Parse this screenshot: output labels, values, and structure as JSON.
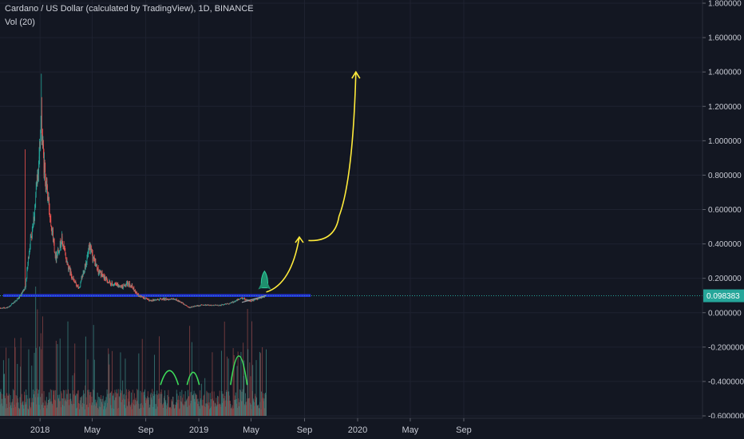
{
  "header": {
    "title": "Cardano / US Dollar (calculated by TradingView), 1D, BINANCE",
    "indicator": "Vol (20)"
  },
  "colors": {
    "background": "#131722",
    "grid": "#1e2230",
    "up": "#26a69a",
    "down": "#ef5350",
    "support": "#2431d8",
    "projection": "#ffeb3b",
    "volume_arcs": "#3ddc5a",
    "price_line": "#26a69a",
    "price_label_bg": "#26a69a"
  },
  "chart_data": {
    "type": "candlestick",
    "symbol": "Cardano / US Dollar",
    "interval": "1D",
    "exchange": "BINANCE",
    "ylim": [
      -0.6,
      1.8
    ],
    "y_ticks": [
      "1.800000",
      "1.600000",
      "1.400000",
      "1.200000",
      "1.000000",
      "0.800000",
      "0.600000",
      "0.400000",
      "0.200000",
      "0.000000",
      "-0.200000",
      "-0.400000",
      "-0.600000"
    ],
    "y_tick_values": [
      1.8,
      1.6,
      1.4,
      1.2,
      1.0,
      0.8,
      0.6,
      0.4,
      0.2,
      0.0,
      -0.2,
      -0.4,
      -0.6
    ],
    "x_range": [
      "2017-10-01",
      "2020-11-30"
    ],
    "x_ticks": [
      {
        "label": "2018",
        "date": "2018-01-01"
      },
      {
        "label": "May",
        "date": "2018-05-01"
      },
      {
        "label": "Sep",
        "date": "2018-09-01"
      },
      {
        "label": "2019",
        "date": "2019-01-01"
      },
      {
        "label": "May",
        "date": "2019-05-01"
      },
      {
        "label": "Sep",
        "date": "2019-09-01"
      },
      {
        "label": "2020",
        "date": "2020-01-01"
      },
      {
        "label": "May",
        "date": "2020-05-01"
      },
      {
        "label": "Sep",
        "date": "2020-09-01"
      }
    ],
    "price_path": [
      {
        "date": "2017-10-01",
        "close": 0.025
      },
      {
        "date": "2017-10-20",
        "close": 0.03
      },
      {
        "date": "2017-11-15",
        "close": 0.09
      },
      {
        "date": "2017-11-28",
        "close": 0.14
      },
      {
        "date": "2017-12-08",
        "close": 0.38
      },
      {
        "date": "2017-12-20",
        "close": 0.6
      },
      {
        "date": "2017-12-28",
        "close": 0.85
      },
      {
        "date": "2018-01-04",
        "close": 1.1
      },
      {
        "date": "2018-01-10",
        "close": 0.85
      },
      {
        "date": "2018-01-20",
        "close": 0.65
      },
      {
        "date": "2018-02-06",
        "close": 0.32
      },
      {
        "date": "2018-02-20",
        "close": 0.42
      },
      {
        "date": "2018-03-05",
        "close": 0.28
      },
      {
        "date": "2018-03-20",
        "close": 0.18
      },
      {
        "date": "2018-04-01",
        "close": 0.14
      },
      {
        "date": "2018-04-25",
        "close": 0.37
      },
      {
        "date": "2018-05-15",
        "close": 0.24
      },
      {
        "date": "2018-06-10",
        "close": 0.17
      },
      {
        "date": "2018-07-10",
        "close": 0.15
      },
      {
        "date": "2018-07-25",
        "close": 0.17
      },
      {
        "date": "2018-08-15",
        "close": 0.1
      },
      {
        "date": "2018-09-10",
        "close": 0.07
      },
      {
        "date": "2018-10-10",
        "close": 0.08
      },
      {
        "date": "2018-11-10",
        "close": 0.075
      },
      {
        "date": "2018-12-10",
        "close": 0.03
      },
      {
        "date": "2019-01-10",
        "close": 0.045
      },
      {
        "date": "2019-02-15",
        "close": 0.042
      },
      {
        "date": "2019-03-15",
        "close": 0.055
      },
      {
        "date": "2019-04-10",
        "close": 0.085
      },
      {
        "date": "2019-05-01",
        "close": 0.065
      },
      {
        "date": "2019-05-20",
        "close": 0.085
      },
      {
        "date": "2019-06-01",
        "close": 0.095
      }
    ],
    "volume_period": [
      "2017-10-01",
      "2019-06-05"
    ],
    "current_price": 0.098383,
    "current_price_label": "0.098383",
    "support_level": 0.1,
    "support_range": [
      "2017-10-01",
      "2019-09-15"
    ],
    "trendline": [
      {
        "date": "2019-04-10",
        "value": 0.06
      },
      {
        "date": "2019-06-05",
        "value": 0.1
      }
    ],
    "rocket_at": {
      "date": "2019-06-01",
      "value": 0.2
    },
    "projection": {
      "segment1": [
        {
          "date": "2019-06-05",
          "value": 0.12
        },
        {
          "date": "2019-08-20",
          "value": 0.44
        }
      ],
      "segment2": [
        {
          "date": "2019-09-10",
          "value": 0.42
        },
        {
          "date": "2019-11-10",
          "value": 0.56
        },
        {
          "date": "2019-12-10",
          "value": 0.98
        },
        {
          "date": "2019-12-28",
          "value": 1.4
        }
      ]
    },
    "volume_arcs": [
      {
        "start": "2018-10-05",
        "end": "2018-11-15",
        "peak": -0.3
      },
      {
        "start": "2018-12-05",
        "end": "2019-01-02",
        "peak": -0.32
      },
      {
        "start": "2019-03-15",
        "end": "2019-04-22",
        "peak": -0.13
      }
    ]
  }
}
